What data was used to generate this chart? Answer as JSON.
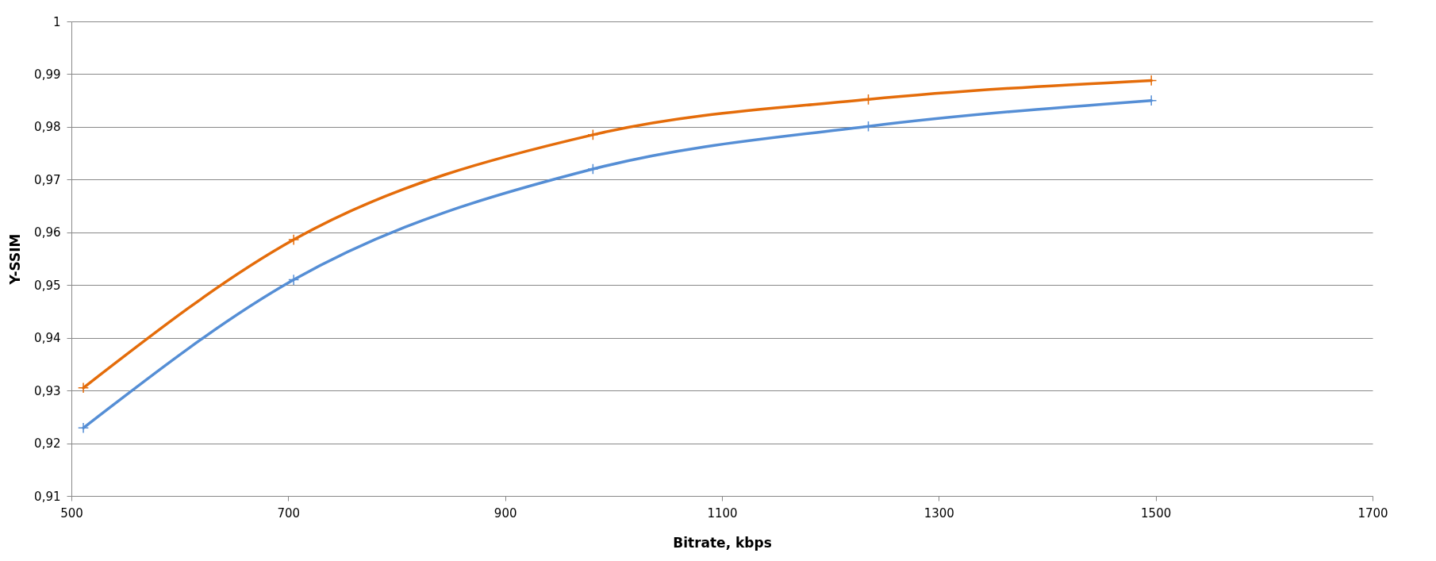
{
  "chart_data": {
    "type": "line",
    "xlabel": "Bitrate, kbps",
    "ylabel": "Y-SSIM",
    "xlim": [
      500,
      1700
    ],
    "xticks": [
      500,
      700,
      900,
      1100,
      1300,
      1500,
      1700
    ],
    "ylim": [
      0.91,
      1
    ],
    "yticks": [
      {
        "value": 0.91,
        "label": "0,91"
      },
      {
        "value": 0.92,
        "label": "0,92"
      },
      {
        "value": 0.93,
        "label": "0,93"
      },
      {
        "value": 0.94,
        "label": "0,94"
      },
      {
        "value": 0.95,
        "label": "0,95"
      },
      {
        "value": 0.96,
        "label": "0,96"
      },
      {
        "value": 0.97,
        "label": "0,97"
      },
      {
        "value": 0.98,
        "label": "0,98"
      },
      {
        "value": 0.99,
        "label": "0,99"
      },
      {
        "value": 1,
        "label": "1"
      }
    ],
    "grid": "y",
    "marker": "cross",
    "line_style": "solid",
    "legend": false,
    "series": [
      {
        "color": "#e46c0a",
        "x": [
          511,
          705,
          981,
          1235,
          1496
        ],
        "values": [
          0.9305,
          0.9586,
          0.9785,
          0.9852,
          0.9888
        ]
      },
      {
        "color": "#558ed5",
        "x": [
          511,
          705,
          981,
          1235,
          1496
        ],
        "values": [
          0.9229,
          0.951,
          0.972,
          0.9801,
          0.985
        ]
      }
    ]
  }
}
